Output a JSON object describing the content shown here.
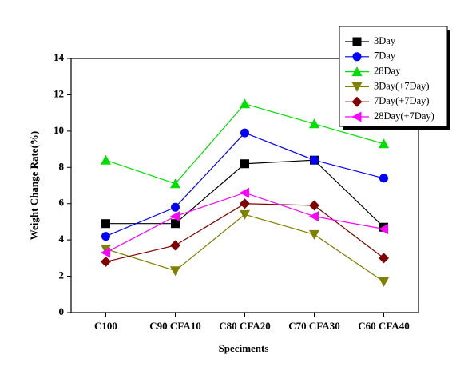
{
  "chart_data": {
    "type": "line",
    "x_label": "Speciments",
    "y_label": "Weight Change Rate(%)",
    "categories": [
      "C100",
      "C90 CFA10",
      "C80 CFA20",
      "C70 CFA30",
      "C60 CFA40"
    ],
    "ylim": [
      0,
      14
    ],
    "yticks": [
      0,
      2,
      4,
      6,
      8,
      10,
      12,
      14
    ],
    "legend": "top-right",
    "series": [
      {
        "name": "3Day",
        "color": "#000000",
        "marker": "square",
        "values": [
          4.9,
          4.9,
          8.2,
          8.4,
          4.7
        ]
      },
      {
        "name": "7Day",
        "color": "#0000ff",
        "marker": "circle",
        "values": [
          4.2,
          5.8,
          9.9,
          8.4,
          7.4
        ]
      },
      {
        "name": "28Day",
        "color": "#00e000",
        "marker": "triangle-up",
        "values": [
          8.4,
          7.1,
          11.5,
          10.4,
          9.3
        ]
      },
      {
        "name": "3Day(+7Day)",
        "color": "#808000",
        "marker": "triangle-down",
        "values": [
          3.5,
          2.3,
          5.4,
          4.3,
          1.7
        ]
      },
      {
        "name": "7Day(+7Day)",
        "color": "#800000",
        "marker": "diamond",
        "values": [
          2.8,
          3.7,
          6.0,
          5.9,
          3.0
        ]
      },
      {
        "name": "28Day(+7Day)",
        "color": "#ff00ff",
        "marker": "triangle-left",
        "values": [
          3.3,
          5.3,
          6.6,
          5.3,
          4.6
        ]
      }
    ]
  }
}
